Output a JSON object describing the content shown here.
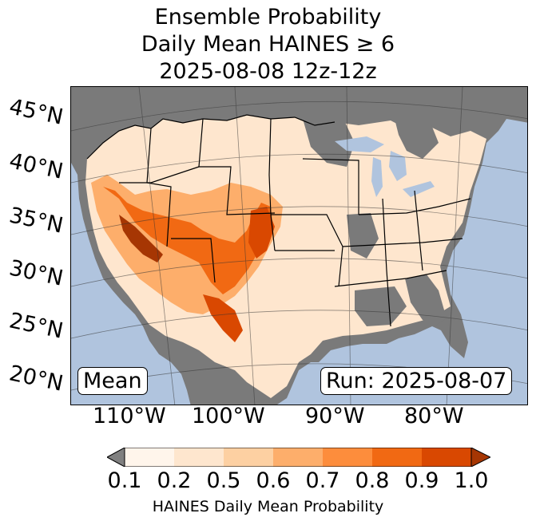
{
  "title": {
    "line1": "Ensemble Probability",
    "line2": "Daily Mean HAINES ≥ 6",
    "line3": "2025-08-08 12z-12z"
  },
  "map": {
    "region": "CONUS",
    "ocean_color": "#b0c4de",
    "missing_color": "#808080",
    "lat_labels": [
      "45°N",
      "40°N",
      "35°N",
      "30°N",
      "25°N",
      "20°N"
    ],
    "lon_labels": [
      "110°W",
      "100°W",
      "90°W",
      "80°W"
    ],
    "mean_box": "Mean",
    "run_box": "Run: 2025-08-07"
  },
  "colorbar": {
    "ticks": [
      "0.1",
      "0.2",
      "0.5",
      "0.6",
      "0.7",
      "0.8",
      "0.9",
      "1.0"
    ],
    "colors": [
      "#fff5eb",
      "#fee6ce",
      "#fdd0a2",
      "#fdae6b",
      "#fd8d3c",
      "#f16913",
      "#d94801",
      "#a63603"
    ],
    "under_color": "#808080",
    "label": "HAINES Daily Mean Probability"
  }
}
